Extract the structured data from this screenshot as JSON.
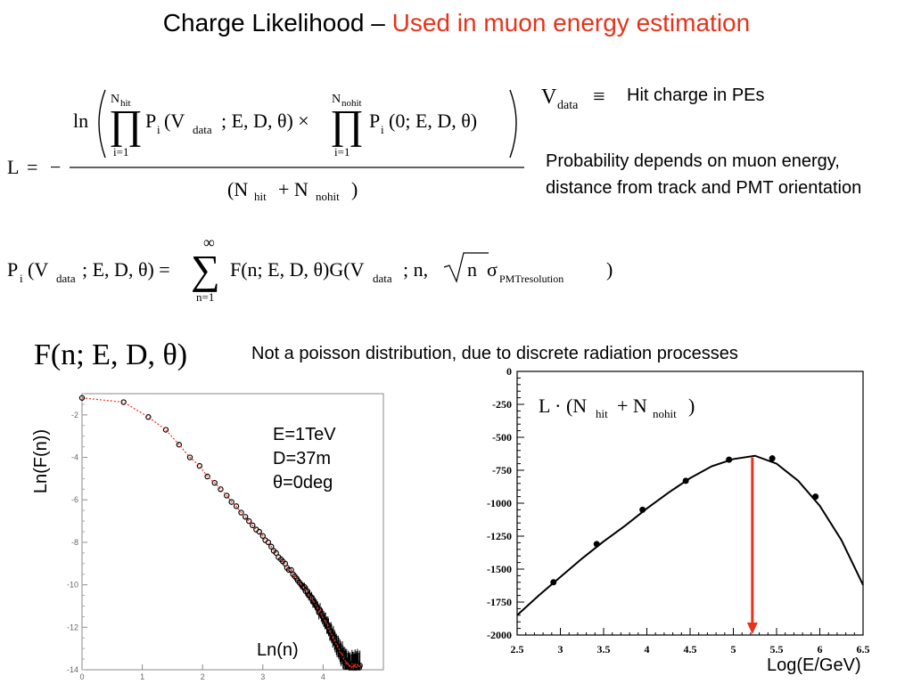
{
  "slide": {
    "title_main": "Charge Likelihood – ",
    "title_highlight": "Used in muon energy estimation",
    "accent_color": "#e8321a",
    "vdata_def": "Hit charge in  PEs",
    "prob_note": "Probability depends on muon energy, distance from track and PMT orientation",
    "fn_label": "F(n; E, D, θ)",
    "not_poisson": "Not a poisson distribution, due to discrete radiation processes"
  },
  "equations": {
    "likelihood": "L = − ln( ∏_{i=1}^{N_hit} P_i(V_data; E, D, θ) × ∏_{i=1}^{N_nohit} P_i(0; E, D, θ) ) / (N_hit + N_nohit)",
    "probability": "P_i(V_data; E, D, θ) = Σ_{n=1}^{∞} F(n; E, D, θ) G(V_data; n, √n σ_PMTresolution)",
    "vdata_symbol": "V_data ≡",
    "y_label_right": "L · (N_hit + N_nohit)"
  },
  "chart_data": [
    {
      "type": "scatter",
      "ylabel": "Ln(F(n))",
      "xlabel": "Ln(n)",
      "xlim": [
        0,
        5
      ],
      "ylim": [
        -14,
        -1
      ],
      "xticks": [
        "0",
        "1",
        "2",
        "3",
        "4"
      ],
      "yticks": [
        "-2",
        "-4",
        "-6",
        "-8",
        "-10",
        "-12",
        "-14"
      ],
      "annotation": [
        "E=1TeV",
        "D=37m",
        "θ=0deg"
      ],
      "x": [
        0.0,
        0.69,
        1.1,
        1.39,
        1.61,
        1.79,
        1.95,
        2.08,
        2.2,
        2.3,
        2.4,
        2.48,
        2.56,
        2.64,
        2.71,
        2.77,
        2.83,
        2.89,
        2.94,
        3.0,
        3.04,
        3.09,
        3.14,
        3.18,
        3.22,
        3.26,
        3.3,
        3.33,
        3.37,
        3.4,
        3.43,
        3.47,
        3.5,
        3.53,
        3.56,
        3.58,
        3.61,
        3.64,
        3.66,
        3.69,
        3.71,
        3.74,
        3.76,
        3.78,
        3.81,
        3.83,
        3.85,
        3.87,
        3.89,
        3.91,
        3.93,
        3.95,
        3.97,
        3.99,
        4.01,
        4.03,
        4.04,
        4.06,
        4.08,
        4.09,
        4.11,
        4.13,
        4.14,
        4.16,
        4.17,
        4.19,
        4.2,
        4.22,
        4.23,
        4.25,
        4.26,
        4.28,
        4.29,
        4.3,
        4.32,
        4.33,
        4.34,
        4.36,
        4.37,
        4.38,
        4.39,
        4.41,
        4.42,
        4.43,
        4.44,
        4.45,
        4.47,
        4.48,
        4.49,
        4.5,
        4.51,
        4.52,
        4.53,
        4.54,
        4.55,
        4.56,
        4.57,
        4.58,
        4.6,
        4.61
      ],
      "y": [
        -1.2,
        -1.4,
        -2.1,
        -2.7,
        -3.4,
        -4.0,
        -4.4,
        -4.9,
        -5.2,
        -5.5,
        -5.8,
        -6.1,
        -6.3,
        -6.6,
        -6.8,
        -7.0,
        -7.2,
        -7.4,
        -7.5,
        -7.7,
        -7.9,
        -8.0,
        -8.2,
        -8.4,
        -8.5,
        -8.7,
        -8.8,
        -8.9,
        -9.0,
        -9.2,
        -9.3,
        -9.3,
        -9.5,
        -9.6,
        -9.7,
        -9.8,
        -9.9,
        -10.0,
        -10.1,
        -10.1,
        -10.3,
        -10.3,
        -10.5,
        -10.5,
        -10.6,
        -10.8,
        -10.8,
        -10.9,
        -11.0,
        -11.1,
        -11.3,
        -11.2,
        -11.4,
        -11.5,
        -11.6,
        -11.7,
        -11.7,
        -11.9,
        -11.9,
        -12.0,
        -12.2,
        -12.2,
        -12.3,
        -12.5,
        -12.4,
        -12.6,
        -12.7,
        -12.8,
        -12.9,
        -12.9,
        -13.0,
        -13.1,
        -13.2,
        -13.3,
        -13.2,
        -13.4,
        -13.5,
        -13.5,
        -13.6,
        -13.7,
        -13.6,
        -13.8,
        -13.7,
        -13.8,
        -13.9,
        -13.8,
        -13.9,
        -13.7,
        -13.8,
        -13.9,
        -13.8,
        -13.9,
        -13.7,
        -13.9,
        -13.8,
        -13.9,
        -13.7,
        -13.8,
        -13.9,
        -13.8
      ],
      "fit_color": "#e8321a"
    },
    {
      "type": "line",
      "xlabel": "Log(E/GeV)",
      "xlim": [
        2.5,
        6.5
      ],
      "ylim": [
        -2000,
        0
      ],
      "xticks": [
        "2.5",
        "3",
        "3.5",
        "4",
        "4.5",
        "5",
        "5.5",
        "6",
        "6.5"
      ],
      "yticks": [
        "0",
        "-250",
        "-500",
        "-750",
        "-1000",
        "-1250",
        "-1500",
        "-1750",
        "-2000"
      ],
      "points_x": [
        2.92,
        3.42,
        3.95,
        4.45,
        4.95,
        5.45,
        5.95
      ],
      "points_y": [
        -1600,
        -1310,
        -1050,
        -830,
        -670,
        -660,
        -950
      ],
      "curve_x": [
        2.5,
        2.75,
        3.0,
        3.25,
        3.5,
        3.75,
        4.0,
        4.25,
        4.5,
        4.75,
        5.0,
        5.25,
        5.5,
        5.75,
        6.0,
        6.25,
        6.5
      ],
      "curve_y": [
        -1850,
        -1700,
        -1560,
        -1420,
        -1290,
        -1170,
        -1040,
        -920,
        -810,
        -720,
        -665,
        -640,
        -700,
        -830,
        -1020,
        -1280,
        -1620
      ],
      "marker_x": 5.22,
      "arrow_color": "#e8321a"
    }
  ]
}
